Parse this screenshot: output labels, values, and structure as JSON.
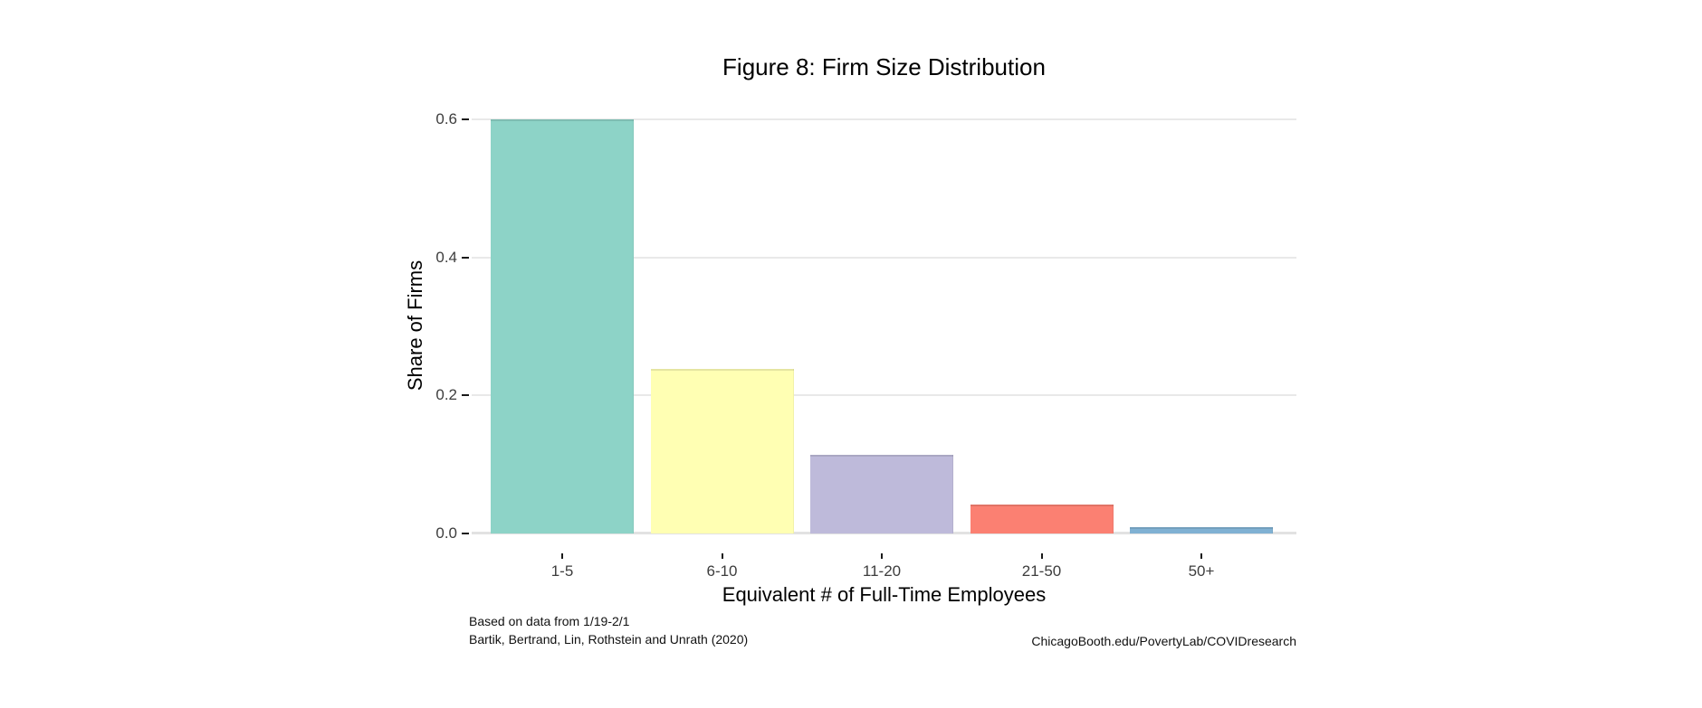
{
  "title": "Figure 8: Firm Size Distribution",
  "footer": {
    "left_line1": "Based on data from 1/19-2/1",
    "left_line2": "Bartik, Bertrand, Lin, Rothstein and Unrath (2020)",
    "right": "ChicagoBooth.edu/PovertyLab/COVIDresearch"
  },
  "chart_data": {
    "type": "bar",
    "title": "Figure 8: Firm Size Distribution",
    "categories": [
      "1-5",
      "6-10",
      "11-20",
      "21-50",
      "50+"
    ],
    "values": [
      0.6,
      0.238,
      0.113,
      0.041,
      0.008
    ],
    "xlabel": "Equivalent # of Full-Time Employees",
    "ylabel": "Share of Firms",
    "ylim": [
      0,
      0.63
    ],
    "yticks": [
      0.0,
      0.2,
      0.4,
      0.6
    ],
    "ytick_labels": [
      "0.0",
      "0.2",
      "0.4",
      "0.6"
    ],
    "grid": "horizontal-major-only",
    "legend": "none",
    "background": "#FFFFFF",
    "gridline_color": "#E9E9E9",
    "axis_text_color": "#3D3D3D",
    "bar_colors": [
      "#8DD3C7",
      "#FFFFB3",
      "#BEBADA",
      "#FB8072",
      "#80B1D3"
    ],
    "palette": "Set3"
  }
}
